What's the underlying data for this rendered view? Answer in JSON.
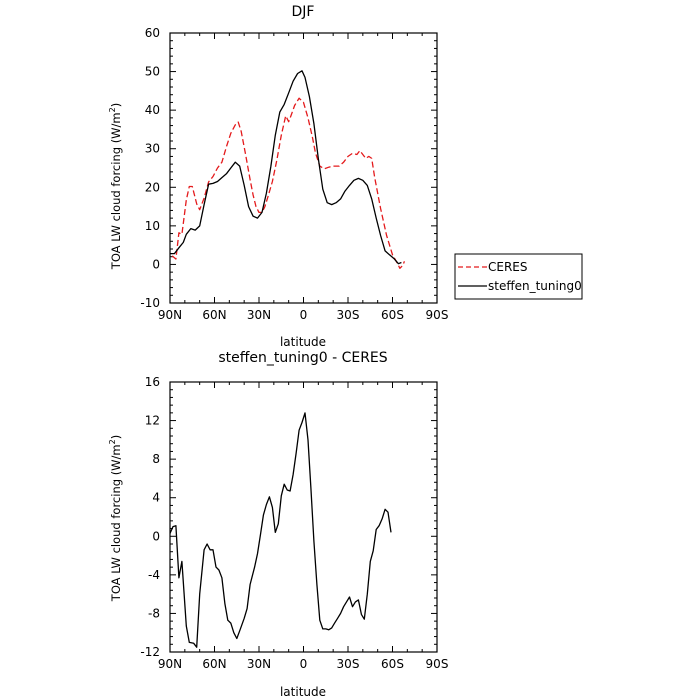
{
  "chart_data": [
    {
      "type": "line",
      "title": "DJF",
      "xlabel": "latitude",
      "ylabel_main": "TOA LW cloud forcing (W/m",
      "ylabel_sup": "2",
      "ylabel_tail": ")",
      "xlim": [
        90,
        -90
      ],
      "ylim": [
        -10,
        60
      ],
      "xticks": [
        90,
        60,
        30,
        0,
        -30,
        -60,
        -90
      ],
      "xtick_labels": [
        "90N",
        "60N",
        "30N",
        "0",
        "30S",
        "60S",
        "90S"
      ],
      "yticks": [
        -10,
        0,
        10,
        20,
        30,
        40,
        50,
        60
      ],
      "ytick_labels": [
        "-10",
        "0",
        "10",
        "20",
        "30",
        "40",
        "50",
        "60"
      ],
      "grid": false,
      "legend_position": "right",
      "series": [
        {
          "name": "CERES",
          "color": "#e41a1c",
          "dash": "dashed",
          "points": [
            [
              88.5,
              2.2
            ],
            [
              86,
              1.4
            ],
            [
              84,
              8.2
            ],
            [
              82,
              7.8
            ],
            [
              79,
              16.7
            ],
            [
              77,
              20.2
            ],
            [
              75,
              20.2
            ],
            [
              72,
              15.7
            ],
            [
              70,
              14.2
            ],
            [
              67,
              17.2
            ],
            [
              64,
              21.4
            ],
            [
              61,
              22.8
            ],
            [
              58,
              25.0
            ],
            [
              55,
              26.5
            ],
            [
              52,
              30.5
            ],
            [
              49,
              34.0
            ],
            [
              46,
              36.2
            ],
            [
              44,
              36.9
            ],
            [
              42,
              34.5
            ],
            [
              39,
              28.5
            ],
            [
              36,
              22.0
            ],
            [
              34,
              18.0
            ],
            [
              32,
              15.0
            ],
            [
              30,
              13.5
            ],
            [
              28,
              13.5
            ],
            [
              26,
              15.0
            ],
            [
              24,
              17.5
            ],
            [
              21,
              21.5
            ],
            [
              18,
              27.0
            ],
            [
              15,
              33.5
            ],
            [
              12,
              38.5
            ],
            [
              10,
              37.0
            ],
            [
              8,
              39.0
            ],
            [
              6,
              41.2
            ],
            [
              3,
              43.1
            ],
            [
              0,
              42.0
            ],
            [
              -3,
              38.0
            ],
            [
              -6,
              33.0
            ],
            [
              -8,
              29.0
            ],
            [
              -11,
              25.5
            ],
            [
              -14,
              24.8
            ],
            [
              -17,
              25.2
            ],
            [
              -20,
              25.5
            ],
            [
              -24,
              25.5
            ],
            [
              -27,
              26.5
            ],
            [
              -30,
              28.0
            ],
            [
              -33,
              28.8
            ],
            [
              -36,
              28.5
            ],
            [
              -38,
              29.5
            ],
            [
              -40,
              28.5
            ],
            [
              -42,
              27.5
            ],
            [
              -44,
              28.0
            ],
            [
              -46,
              27.5
            ],
            [
              -48,
              22.5
            ],
            [
              -52,
              14.5
            ],
            [
              -56,
              7.5
            ],
            [
              -60,
              2.5
            ],
            [
              -63,
              0.5
            ],
            [
              -65,
              -1.0
            ],
            [
              -67,
              -0.2
            ],
            [
              -68,
              0.8
            ]
          ]
        },
        {
          "name": "steffen_tuning0",
          "color": "#000000",
          "dash": "solid",
          "points": [
            [
              90,
              2.8
            ],
            [
              87,
              2.8
            ],
            [
              84,
              4.3
            ],
            [
              81,
              5.7
            ],
            [
              79,
              7.8
            ],
            [
              76,
              9.3
            ],
            [
              73,
              8.9
            ],
            [
              70,
              10.0
            ],
            [
              67,
              15.5
            ],
            [
              64,
              20.8
            ],
            [
              61,
              21.0
            ],
            [
              58,
              21.5
            ],
            [
              55,
              22.5
            ],
            [
              52,
              23.5
            ],
            [
              49,
              25.0
            ],
            [
              46,
              26.5
            ],
            [
              43,
              25.5
            ],
            [
              40,
              20.5
            ],
            [
              37,
              15.0
            ],
            [
              34,
              12.5
            ],
            [
              31,
              12.0
            ],
            [
              28,
              13.5
            ],
            [
              25,
              18.5
            ],
            [
              22,
              25.5
            ],
            [
              19,
              33.5
            ],
            [
              16,
              39.5
            ],
            [
              13,
              41.5
            ],
            [
              10,
              44.5
            ],
            [
              7,
              47.5
            ],
            [
              4,
              49.5
            ],
            [
              1,
              50.2
            ],
            [
              -1,
              48.5
            ],
            [
              -4,
              43.5
            ],
            [
              -7,
              36.5
            ],
            [
              -10,
              27.5
            ],
            [
              -13,
              19.5
            ],
            [
              -16,
              16.0
            ],
            [
              -19,
              15.5
            ],
            [
              -22,
              16.0
            ],
            [
              -25,
              17.0
            ],
            [
              -28,
              19.0
            ],
            [
              -31,
              20.5
            ],
            [
              -34,
              21.8
            ],
            [
              -37,
              22.3
            ],
            [
              -40,
              21.8
            ],
            [
              -43,
              20.5
            ],
            [
              -46,
              17.0
            ],
            [
              -49,
              12.0
            ],
            [
              -52,
              7.5
            ],
            [
              -55,
              3.5
            ],
            [
              -58,
              2.5
            ],
            [
              -61,
              1.5
            ],
            [
              -64,
              0.2
            ],
            [
              -66,
              0.5
            ]
          ]
        }
      ]
    },
    {
      "type": "line",
      "title": "steffen_tuning0 - CERES",
      "xlabel": "latitude",
      "ylabel_main": "TOA LW cloud forcing (W/m",
      "ylabel_sup": "2",
      "ylabel_tail": ")",
      "xlim": [
        90,
        -90
      ],
      "ylim": [
        -12,
        16
      ],
      "xticks": [
        90,
        60,
        30,
        0,
        -30,
        -60,
        -90
      ],
      "xtick_labels": [
        "90N",
        "60N",
        "30N",
        "0",
        "30S",
        "60S",
        "90S"
      ],
      "yticks": [
        -12,
        -8,
        -4,
        0,
        4,
        8,
        12,
        16
      ],
      "ytick_labels": [
        "-12",
        "-8",
        "-4",
        "0",
        "4",
        "8",
        "12",
        "16"
      ],
      "grid": false,
      "series": [
        {
          "color": "#000000",
          "dash": "solid",
          "points": [
            [
              90,
              0.3
            ],
            [
              88,
              1.0
            ],
            [
              86,
              1.1
            ],
            [
              84,
              -4.3
            ],
            [
              82,
              -2.6
            ],
            [
              79,
              -9.3
            ],
            [
              77,
              -11.0
            ],
            [
              74,
              -11.1
            ],
            [
              72,
              -11.5
            ],
            [
              70,
              -6.0
            ],
            [
              67,
              -1.4
            ],
            [
              65,
              -0.8
            ],
            [
              63,
              -1.4
            ],
            [
              61,
              -1.4
            ],
            [
              59,
              -3.2
            ],
            [
              57,
              -3.5
            ],
            [
              55,
              -4.3
            ],
            [
              53,
              -7.0
            ],
            [
              51,
              -8.7
            ],
            [
              49,
              -9.0
            ],
            [
              47,
              -10.0
            ],
            [
              45,
              -10.6
            ],
            [
              43,
              -9.8
            ],
            [
              40,
              -8.5
            ],
            [
              38,
              -7.5
            ],
            [
              36,
              -5.0
            ],
            [
              33,
              -3.2
            ],
            [
              31,
              -1.8
            ],
            [
              29,
              0.2
            ],
            [
              27,
              2.2
            ],
            [
              25,
              3.3
            ],
            [
              23,
              4.1
            ],
            [
              21,
              3.0
            ],
            [
              19,
              0.4
            ],
            [
              17,
              1.3
            ],
            [
              15,
              4.2
            ],
            [
              13,
              5.4
            ],
            [
              11,
              4.8
            ],
            [
              9,
              4.7
            ],
            [
              7,
              6.4
            ],
            [
              5,
              8.6
            ],
            [
              3,
              11.0
            ],
            [
              1,
              11.8
            ],
            [
              -1,
              12.8
            ],
            [
              -3,
              10.0
            ],
            [
              -5,
              5.0
            ],
            [
              -7,
              -0.5
            ],
            [
              -9,
              -5.0
            ],
            [
              -11,
              -8.7
            ],
            [
              -13,
              -9.6
            ],
            [
              -15,
              -9.6
            ],
            [
              -17,
              -9.7
            ],
            [
              -19,
              -9.5
            ],
            [
              -21,
              -9.0
            ],
            [
              -23,
              -8.5
            ],
            [
              -25,
              -8.0
            ],
            [
              -27,
              -7.3
            ],
            [
              -29,
              -6.8
            ],
            [
              -31,
              -6.3
            ],
            [
              -33,
              -7.3
            ],
            [
              -35,
              -6.8
            ],
            [
              -37,
              -6.6
            ],
            [
              -39,
              -8.1
            ],
            [
              -41,
              -8.6
            ],
            [
              -43,
              -6.0
            ],
            [
              -45,
              -2.6
            ],
            [
              -47,
              -1.5
            ],
            [
              -49,
              0.7
            ],
            [
              -51,
              1.1
            ],
            [
              -53,
              1.8
            ],
            [
              -55,
              2.8
            ],
            [
              -57,
              2.5
            ],
            [
              -59,
              0.4
            ]
          ]
        }
      ]
    }
  ]
}
